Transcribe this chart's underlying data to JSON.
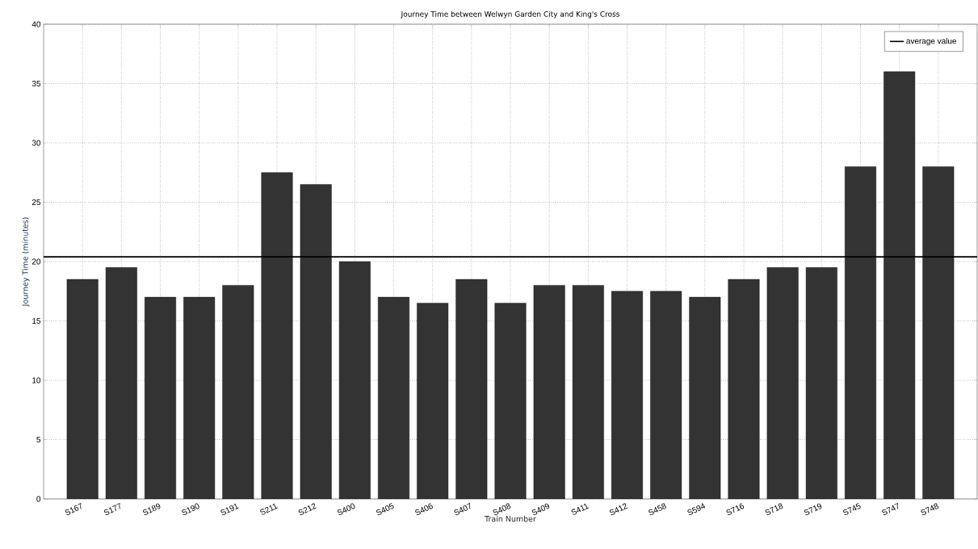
{
  "chart_data": {
    "type": "bar",
    "title": "Journey Time between Welwyn Garden City and King's Cross",
    "xlabel": "Train Number",
    "ylabel": "Journey Time (minutes)",
    "categories": [
      "S167",
      "S177",
      "S189",
      "S190",
      "S191",
      "S211",
      "S212",
      "S400",
      "S405",
      "S406",
      "S407",
      "S408",
      "S409",
      "S411",
      "S412",
      "S458",
      "S594",
      "S716",
      "S718",
      "S719",
      "S745",
      "S747",
      "S748"
    ],
    "values": [
      18.5,
      19.5,
      17,
      17,
      18,
      27.5,
      26.5,
      20,
      17,
      16.5,
      18.5,
      16.5,
      18,
      18,
      17.5,
      17.5,
      17,
      18.5,
      19.5,
      19.5,
      28,
      36,
      28
    ],
    "color": "#333333",
    "ylim": [
      0,
      40
    ],
    "yticks": [
      0,
      5,
      10,
      15,
      20,
      25,
      30,
      35,
      40
    ],
    "grid": true,
    "legend": "top right",
    "ref_lines": [
      {
        "axis": "y",
        "value": 20.4,
        "label": "average value",
        "color": "#000000",
        "line_style": "solid"
      }
    ]
  }
}
